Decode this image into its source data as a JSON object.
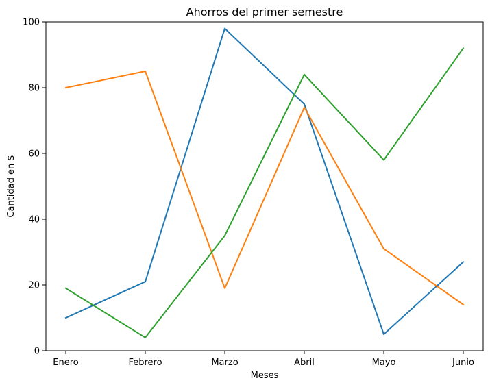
{
  "chart_data": {
    "type": "line",
    "title": "Ahorros del primer semestre",
    "xlabel": "Meses",
    "ylabel": "Cantidad en $",
    "categories": [
      "Enero",
      "Febrero",
      "Marzo",
      "Abril",
      "Mayo",
      "Junio"
    ],
    "ylim": [
      0,
      100
    ],
    "yticks": [
      0,
      20,
      40,
      60,
      80,
      100
    ],
    "grid": false,
    "legend": "none",
    "series": [
      {
        "values": [
          10,
          21,
          98,
          75,
          5,
          27
        ],
        "color": "#1f77b4"
      },
      {
        "values": [
          80,
          85,
          19,
          74,
          31,
          14
        ],
        "color": "#ff7f0e"
      },
      {
        "values": [
          19,
          4,
          35,
          84,
          58,
          92
        ],
        "color": "#2ca02c"
      }
    ]
  }
}
